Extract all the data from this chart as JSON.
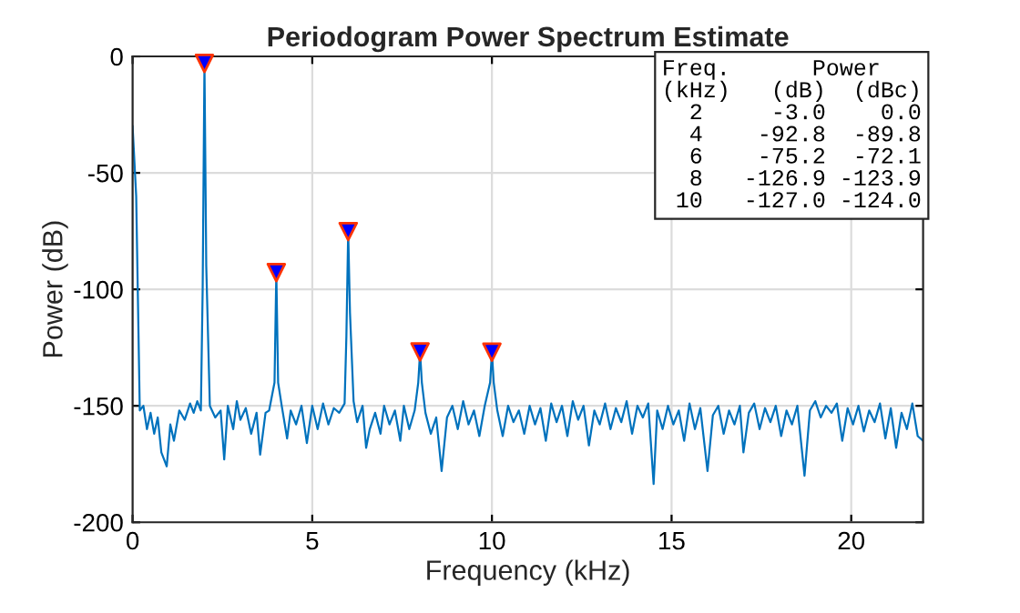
{
  "chart_data": {
    "type": "line",
    "title": "Periodogram Power Spectrum Estimate",
    "xlabel": "Frequency (kHz)",
    "ylabel": "Power (dB)",
    "xlim": [
      0,
      22
    ],
    "xticks": [
      0,
      5,
      10,
      15,
      20
    ],
    "ylim": [
      -200,
      0
    ],
    "yticks": [
      -200,
      -150,
      -100,
      -50,
      0
    ],
    "grid": true,
    "legend": false,
    "series": [
      {
        "color": "#0072bd",
        "marker": "none",
        "x": [
          0,
          0.1,
          0.2,
          0.3,
          0.4,
          0.5,
          0.6,
          0.7,
          0.8,
          0.95,
          1.05,
          1.15,
          1.3,
          1.45,
          1.6,
          1.7,
          1.8,
          1.9,
          1.95,
          2.0,
          2.05,
          2.15,
          2.3,
          2.45,
          2.55,
          2.65,
          2.8,
          2.9,
          3.0,
          3.15,
          3.3,
          3.45,
          3.55,
          3.7,
          3.8,
          3.95,
          4.0,
          4.05,
          4.15,
          4.3,
          4.4,
          4.55,
          4.7,
          4.85,
          5.0,
          5.15,
          5.3,
          5.45,
          5.6,
          5.75,
          5.9,
          5.95,
          6.0,
          6.05,
          6.15,
          6.25,
          6.4,
          6.5,
          6.6,
          6.75,
          6.9,
          7.0,
          7.15,
          7.3,
          7.45,
          7.55,
          7.7,
          7.85,
          7.95,
          8.0,
          8.05,
          8.15,
          8.3,
          8.45,
          8.6,
          8.75,
          8.9,
          9.05,
          9.2,
          9.35,
          9.5,
          9.65,
          9.8,
          9.95,
          10.0,
          10.05,
          10.15,
          10.3,
          10.45,
          10.6,
          10.75,
          10.9,
          11.05,
          11.2,
          11.35,
          11.5,
          11.65,
          11.8,
          11.95,
          12.1,
          12.25,
          12.4,
          12.55,
          12.7,
          12.85,
          13.0,
          13.15,
          13.3,
          13.45,
          13.6,
          13.75,
          13.9,
          14.05,
          14.2,
          14.35,
          14.5,
          14.6,
          14.75,
          14.9,
          15.05,
          15.2,
          15.35,
          15.5,
          15.65,
          15.8,
          16.0,
          16.15,
          16.3,
          16.45,
          16.6,
          16.75,
          16.9,
          17.0,
          17.15,
          17.3,
          17.45,
          17.6,
          17.75,
          17.9,
          18.05,
          18.2,
          18.35,
          18.5,
          18.7,
          18.85,
          19.0,
          19.15,
          19.3,
          19.45,
          19.6,
          19.75,
          19.9,
          20.05,
          20.2,
          20.35,
          20.5,
          20.65,
          20.8,
          20.95,
          21.1,
          21.25,
          21.4,
          21.55,
          21.7,
          21.85,
          22.0
        ],
        "values": [
          -30,
          -60,
          -152,
          -150,
          -160,
          -153,
          -162,
          -155,
          -170,
          -176,
          -158,
          -165,
          -152,
          -156,
          -149,
          -153,
          -148,
          -152,
          -100,
          -3,
          -90,
          -150,
          -155,
          -152,
          -173,
          -150,
          -160,
          -148,
          -156,
          -151,
          -162,
          -153,
          -171,
          -153,
          -152,
          -140,
          -92.8,
          -140,
          -150,
          -164,
          -152,
          -158,
          -150,
          -166,
          -150,
          -160,
          -149,
          -158,
          -151,
          -153,
          -149,
          -120,
          -75.2,
          -110,
          -148,
          -157,
          -150,
          -168,
          -160,
          -153,
          -162,
          -150,
          -158,
          -152,
          -165,
          -150,
          -160,
          -152,
          -140,
          -126.9,
          -140,
          -153,
          -162,
          -155,
          -178,
          -155,
          -150,
          -160,
          -148,
          -158,
          -152,
          -163,
          -150,
          -140,
          -127.0,
          -140,
          -152,
          -163,
          -150,
          -157,
          -152,
          -162,
          -150,
          -158,
          -151,
          -165,
          -149,
          -157,
          -150,
          -163,
          -148,
          -156,
          -150,
          -167,
          -152,
          -158,
          -149,
          -160,
          -151,
          -157,
          -148,
          -162,
          -150,
          -155,
          -149,
          -183.6,
          -152,
          -160,
          -150,
          -158,
          -152,
          -165,
          -149,
          -160,
          -151,
          -178,
          -154,
          -150,
          -162,
          -152,
          -158,
          -150,
          -170,
          -153,
          -149,
          -160,
          -151,
          -157,
          -150,
          -163,
          -152,
          -158,
          -150,
          -180,
          -152,
          -148,
          -155,
          -150,
          -153,
          -149,
          -165,
          -151,
          -158,
          -150,
          -161,
          -152,
          -157,
          -149,
          -164,
          -151,
          -168,
          -153,
          -160,
          -149,
          -163,
          -165
        ]
      },
      {
        "type": "scatter",
        "color": "#0000ff",
        "marker": "triangle",
        "x": [
          2,
          4,
          6,
          8,
          10
        ],
        "values": [
          -3.0,
          -92.8,
          -75.2,
          -126.9,
          -127.0
        ]
      }
    ],
    "annotations": [
      "Freq.      Power",
      "(kHz)   (dB)  (dBc)",
      "  2     -3.0    0.0",
      "  4    -92.8  -89.8",
      "  6    -75.2  -72.1",
      "  8   -126.9 -123.9",
      " 10   -127.0 -124.0"
    ]
  }
}
